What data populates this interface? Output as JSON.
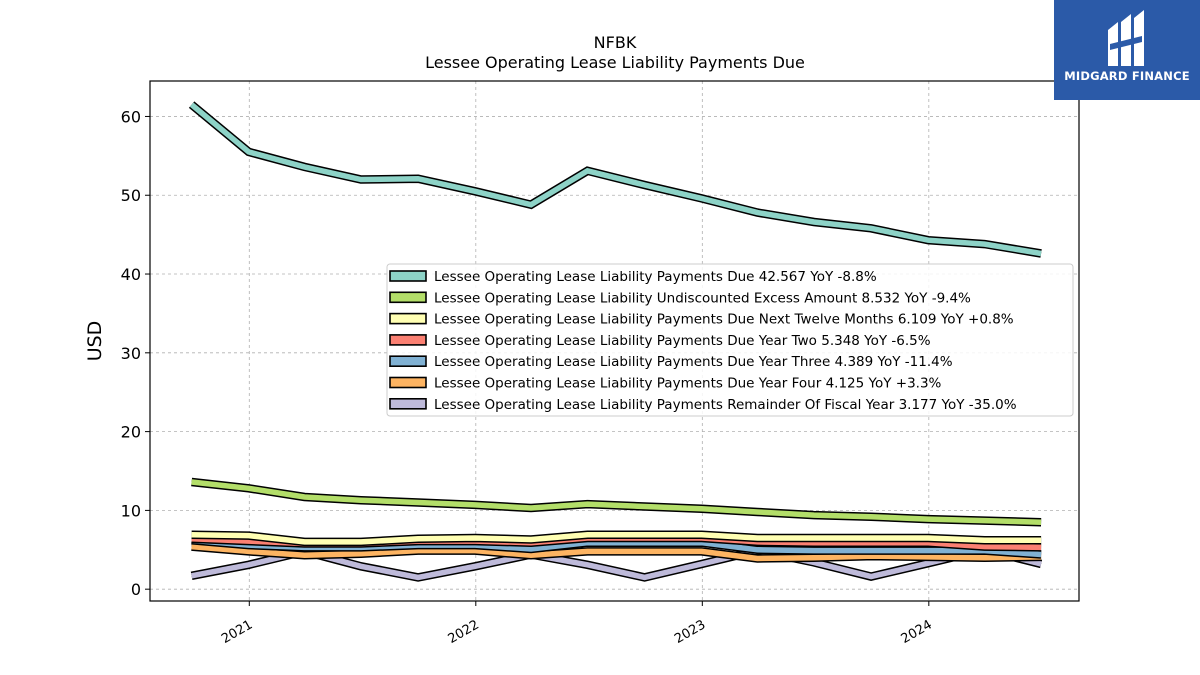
{
  "brand": {
    "name": "MIDGARD FINANCE",
    "color": "#2b5aa8"
  },
  "chart_data": {
    "type": "line",
    "title": "NFBK",
    "subtitle": "Lessee Operating Lease Liability Payments Due",
    "ylabel": "USD",
    "xlabel": "",
    "ylim": [
      -1.5,
      64.5
    ],
    "xlim": [
      "2020-07-25",
      "2024-08-30"
    ],
    "yticks": [
      0,
      10,
      20,
      30,
      40,
      50,
      60
    ],
    "xticks": [
      "2021",
      "2022",
      "2023",
      "2024"
    ],
    "grid": true,
    "legend_position": "center-right",
    "x": [
      "2020-09-30",
      "2020-12-31",
      "2021-03-31",
      "2021-06-30",
      "2021-09-30",
      "2021-12-31",
      "2022-03-31",
      "2022-06-30",
      "2022-09-30",
      "2022-12-31",
      "2023-03-31",
      "2023-06-30",
      "2023-09-30",
      "2023-12-31",
      "2024-03-31",
      "2024-06-30"
    ],
    "series": [
      {
        "name": "Lessee Operating Lease Liability Payments Due",
        "legend": "Lessee Operating Lease Liability Payments Due  42.567 YoY -8.8%",
        "color": "#8dd3c7",
        "values": [
          61.5,
          55.5,
          53.6,
          52.0,
          52.1,
          50.5,
          48.8,
          53.1,
          51.3,
          49.6,
          47.8,
          46.6,
          45.8,
          44.3,
          43.8,
          42.6
        ]
      },
      {
        "name": "Lessee Operating Lease Liability Undiscounted Excess Amount",
        "legend": "Lessee Operating Lease Liability Undiscounted Excess Amount  8.532 YoY -9.4%",
        "color": "#b3de69",
        "values": [
          13.6,
          12.8,
          11.7,
          11.3,
          11.0,
          10.7,
          10.3,
          10.8,
          10.5,
          10.2,
          9.8,
          9.4,
          9.2,
          8.9,
          8.7,
          8.5
        ]
      },
      {
        "name": "Lessee Operating Lease Liability Payments Due Next Twelve Months",
        "legend": "Lessee Operating Lease Liability Payments Due Next Twelve Months  6.109 YoY +0.8%",
        "color": "#ffffb3",
        "values": [
          6.9,
          6.8,
          6.0,
          6.0,
          6.4,
          6.5,
          6.3,
          6.9,
          6.9,
          6.9,
          6.5,
          6.5,
          6.5,
          6.5,
          6.2,
          6.2
        ]
      },
      {
        "name": "Lessee Operating Lease Liability Payments Due Year Two",
        "legend": "Lessee Operating Lease Liability Payments Due Year Two  5.348 YoY -6.5%",
        "color": "#fb8072",
        "values": [
          6.4,
          6.1,
          5.8,
          5.8,
          6.1,
          6.1,
          5.9,
          6.5,
          6.5,
          6.5,
          6.0,
          5.9,
          5.9,
          5.9,
          5.4,
          5.3
        ]
      },
      {
        "name": "Lessee Operating Lease Liability Payments Due Year Three",
        "legend": "Lessee Operating Lease Liability Payments Due Year Three  4.389 YoY -11.4%",
        "color": "#80b1d3",
        "values": [
          6.2,
          5.6,
          5.3,
          5.3,
          5.6,
          5.6,
          5.1,
          5.9,
          5.9,
          5.9,
          5.0,
          4.9,
          4.9,
          4.9,
          4.9,
          4.4
        ]
      },
      {
        "name": "Lessee Operating Lease Liability Payments Due Year Four",
        "legend": "Lessee Operating Lease Liability Payments Due Year Four  4.125 YoY +3.3%",
        "color": "#fdb462",
        "values": [
          5.4,
          4.8,
          4.3,
          4.5,
          4.9,
          4.9,
          4.3,
          4.8,
          4.8,
          4.8,
          3.9,
          4.0,
          4.2,
          4.1,
          4.0,
          4.1
        ]
      },
      {
        "name": "Lessee Operating Lease Liability Payments Remainder Of Fiscal Year",
        "legend": "Lessee Operating Lease Liability Payments Remainder Of Fiscal Year  3.177 YoY -35.0%",
        "color": "#bebada",
        "values": [
          1.7,
          3.1,
          4.8,
          2.9,
          1.5,
          2.9,
          4.4,
          3.1,
          1.5,
          3.2,
          4.9,
          3.4,
          1.6,
          3.3,
          5.0,
          3.2
        ]
      }
    ]
  }
}
